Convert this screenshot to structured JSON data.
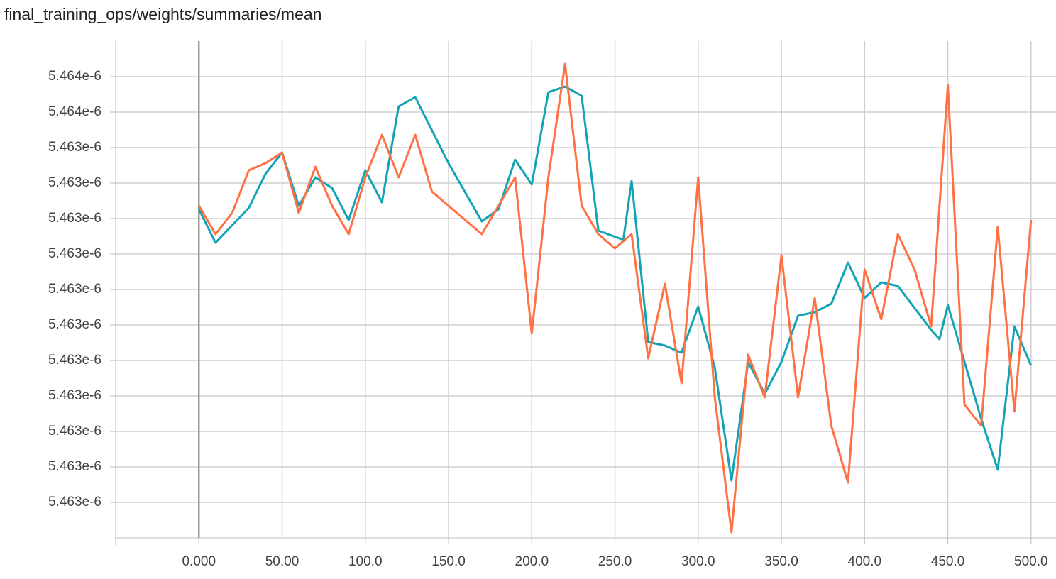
{
  "chart_data": {
    "type": "line",
    "title": "final_training_ops/weights/summaries/mean",
    "xlim": [
      -50,
      515
    ],
    "ylim": [
      5.46327e-06,
      5.46355e-06
    ],
    "grid": true,
    "xticks": [
      {
        "value": 0,
        "label": "0.000"
      },
      {
        "value": 50,
        "label": "50.00"
      },
      {
        "value": 100,
        "label": "100.0"
      },
      {
        "value": 150,
        "label": "150.0"
      },
      {
        "value": 200,
        "label": "200.0"
      },
      {
        "value": 250,
        "label": "250.0"
      },
      {
        "value": 300,
        "label": "300.0"
      },
      {
        "value": 350,
        "label": "350.0"
      },
      {
        "value": 400,
        "label": "400.0"
      },
      {
        "value": 450,
        "label": "450.0"
      },
      {
        "value": 500,
        "label": "500.0"
      }
    ],
    "yticks": [
      {
        "value": 5.46353e-06,
        "label": "5.464e-6"
      },
      {
        "value": 5.46351e-06,
        "label": "5.464e-6"
      },
      {
        "value": 5.46349e-06,
        "label": "5.463e-6"
      },
      {
        "value": 5.46347e-06,
        "label": "5.463e-6"
      },
      {
        "value": 5.46345e-06,
        "label": "5.463e-6"
      },
      {
        "value": 5.46343e-06,
        "label": "5.463e-6"
      },
      {
        "value": 5.46341e-06,
        "label": "5.463e-6"
      },
      {
        "value": 5.46339e-06,
        "label": "5.463e-6"
      },
      {
        "value": 5.46337e-06,
        "label": "5.463e-6"
      },
      {
        "value": 5.46335e-06,
        "label": "5.463e-6"
      },
      {
        "value": 5.46333e-06,
        "label": "5.463e-6"
      },
      {
        "value": 5.46331e-06,
        "label": "5.463e-6"
      },
      {
        "value": 5.46329e-06,
        "label": "5.463e-6"
      }
    ],
    "series": [
      {
        "color": "#12a3b4",
        "x": [
          0,
          10,
          30,
          40,
          50,
          60,
          70,
          80,
          90,
          100,
          110,
          120,
          130,
          150,
          170,
          180,
          190,
          200,
          210,
          220,
          230,
          240,
          255,
          260,
          270,
          280,
          290,
          300,
          310,
          320,
          330,
          340,
          350,
          360,
          370,
          380,
          390,
          400,
          410,
          420,
          440,
          445,
          450,
          470,
          480,
          490,
          500
        ],
        "values": [
          5.4634552e-06,
          5.4634364e-06,
          5.463456e-06,
          5.4634752e-06,
          5.4634872e-06,
          5.4634572e-06,
          5.4634732e-06,
          5.4634672e-06,
          5.4634492e-06,
          5.4634772e-06,
          5.4634592e-06,
          5.4635132e-06,
          5.4635184e-06,
          5.4634812e-06,
          5.4634484e-06,
          5.4634552e-06,
          5.4634832e-06,
          5.4634692e-06,
          5.4635212e-06,
          5.4635244e-06,
          5.4635192e-06,
          5.4634432e-06,
          5.463438e-06,
          5.4634712e-06,
          5.4633804e-06,
          5.4633784e-06,
          5.4633744e-06,
          5.4634004e-06,
          5.463366e-06,
          5.4633024e-06,
          5.4633692e-06,
          5.4633512e-06,
          5.4633692e-06,
          5.4633952e-06,
          5.4633972e-06,
          5.463402e-06,
          5.4634252e-06,
          5.4634052e-06,
          5.463414e-06,
          5.463412e-06,
          5.4633872e-06,
          5.463382e-06,
          5.4634012e-06,
          5.4633372e-06,
          5.4633084e-06,
          5.4633892e-06,
          5.4633672e-06
        ]
      },
      {
        "color": "#ff7043",
        "x": [
          0,
          10,
          20,
          30,
          40,
          50,
          60,
          70,
          80,
          90,
          100,
          110,
          120,
          130,
          140,
          150,
          160,
          170,
          180,
          190,
          200,
          210,
          220,
          230,
          240,
          250,
          260,
          270,
          280,
          290,
          300,
          310,
          320,
          330,
          340,
          350,
          360,
          370,
          380,
          390,
          400,
          410,
          420,
          430,
          440,
          450,
          460,
          470,
          480,
          490,
          500
        ],
        "values": [
          5.4634572e-06,
          5.4634412e-06,
          5.4634532e-06,
          5.4634772e-06,
          5.4634812e-06,
          5.4634872e-06,
          5.4634532e-06,
          5.4634792e-06,
          5.4634572e-06,
          5.4634412e-06,
          5.4634732e-06,
          5.4634972e-06,
          5.4634732e-06,
          5.4634972e-06,
          5.4634652e-06,
          5.4634572e-06,
          5.4634492e-06,
          5.4634412e-06,
          5.4634572e-06,
          5.4634732e-06,
          5.4633852e-06,
          5.4634732e-06,
          5.4635372e-06,
          5.4634572e-06,
          5.4634412e-06,
          5.4634332e-06,
          5.4634412e-06,
          5.4633712e-06,
          5.4634132e-06,
          5.4633572e-06,
          5.4634732e-06,
          5.4633492e-06,
          5.4632732e-06,
          5.4633732e-06,
          5.4633492e-06,
          5.4634292e-06,
          5.4633492e-06,
          5.4634052e-06,
          5.4633332e-06,
          5.4633012e-06,
          5.4634212e-06,
          5.4633932e-06,
          5.4634412e-06,
          5.4634212e-06,
          5.4633892e-06,
          5.4635252e-06,
          5.4633452e-06,
          5.4633332e-06,
          5.4634452e-06,
          5.4633412e-06,
          5.4634492e-06
        ]
      }
    ]
  }
}
